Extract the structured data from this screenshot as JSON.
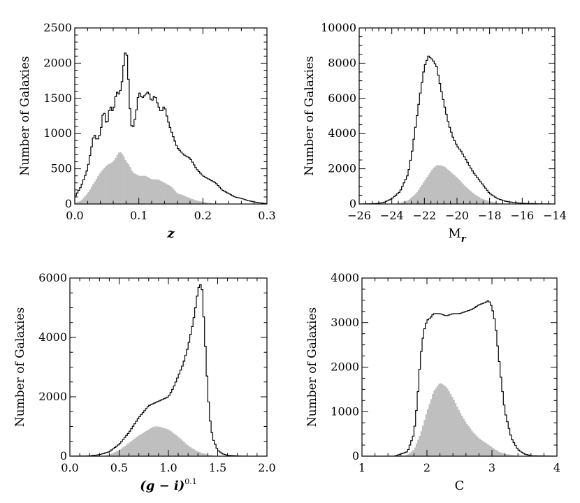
{
  "chart_data": [
    {
      "type": "histogram",
      "xlabel": "z",
      "ylabel": "Number of Galaxies",
      "xlim": [
        0.0,
        0.3
      ],
      "ylim": [
        0,
        2500
      ],
      "xticks": [
        "0.0",
        "0.1",
        "0.2",
        "0.3"
      ],
      "yticks": [
        "0",
        "500",
        "1000",
        "1500",
        "2000",
        "2500"
      ],
      "colors": {
        "outline": "#000000",
        "filled": "#bfbfbf"
      },
      "series": [
        {
          "style": "outline",
          "x": [
            0.0,
            0.01,
            0.02,
            0.025,
            0.03,
            0.035,
            0.04,
            0.045,
            0.05,
            0.055,
            0.06,
            0.065,
            0.07,
            0.075,
            0.078,
            0.08,
            0.082,
            0.085,
            0.088,
            0.09,
            0.095,
            0.1,
            0.105,
            0.11,
            0.115,
            0.12,
            0.125,
            0.13,
            0.135,
            0.14,
            0.145,
            0.15,
            0.16,
            0.17,
            0.18,
            0.19,
            0.2,
            0.21,
            0.22,
            0.23,
            0.24,
            0.25,
            0.26,
            0.27,
            0.28,
            0.29,
            0.3
          ],
          "y": [
            100,
            250,
            500,
            750,
            1000,
            900,
            1000,
            1350,
            1100,
            1400,
            1300,
            1600,
            1550,
            1800,
            2200,
            2050,
            2150,
            1500,
            1150,
            1050,
            1250,
            1600,
            1500,
            1550,
            1600,
            1450,
            1550,
            1400,
            1300,
            1400,
            1200,
            1050,
            800,
            700,
            650,
            500,
            400,
            350,
            300,
            200,
            150,
            100,
            80,
            50,
            30,
            15,
            5
          ]
        },
        {
          "style": "filled",
          "x": [
            0.0,
            0.01,
            0.02,
            0.03,
            0.04,
            0.05,
            0.06,
            0.07,
            0.075,
            0.08,
            0.085,
            0.09,
            0.1,
            0.11,
            0.12,
            0.13,
            0.14,
            0.15,
            0.16,
            0.17,
            0.18,
            0.19,
            0.2,
            0.21,
            0.22,
            0.25,
            0.3
          ],
          "y": [
            10,
            50,
            150,
            300,
            450,
            550,
            600,
            750,
            700,
            600,
            550,
            450,
            400,
            400,
            350,
            350,
            300,
            250,
            150,
            120,
            80,
            50,
            30,
            15,
            5,
            0,
            0
          ]
        }
      ]
    },
    {
      "type": "histogram",
      "xlabel": "M_r",
      "ylabel": "Number of Galaxies",
      "xlim": [
        -26,
        -14
      ],
      "ylim": [
        0,
        10000
      ],
      "xticks": [
        "−26",
        "−24",
        "−22",
        "−20",
        "−18",
        "−16",
        "−14"
      ],
      "yticks": [
        "0",
        "2000",
        "4000",
        "6000",
        "8000",
        "10000"
      ],
      "colors": {
        "outline": "#000000",
        "filled": "#bfbfbf"
      },
      "series": [
        {
          "style": "outline",
          "x": [
            -26,
            -25,
            -24.5,
            -24,
            -23.5,
            -23,
            -22.75,
            -22.5,
            -22.25,
            -22,
            -21.75,
            -21.5,
            -21.25,
            -21,
            -20.75,
            -20.5,
            -20.25,
            -20,
            -19.75,
            -19.5,
            -19.25,
            -19,
            -18.75,
            -18.5,
            -18.25,
            -18,
            -17.5,
            -17,
            -16.5,
            -16,
            -15,
            -14
          ],
          "y": [
            0,
            20,
            80,
            300,
            700,
            1700,
            3000,
            4700,
            6300,
            7800,
            8400,
            8200,
            7800,
            6600,
            5500,
            4500,
            3800,
            3300,
            3000,
            2600,
            2200,
            1800,
            1500,
            1200,
            900,
            600,
            300,
            150,
            80,
            40,
            10,
            0
          ]
        },
        {
          "style": "filled",
          "x": [
            -26,
            -24,
            -23.5,
            -23,
            -22.5,
            -22,
            -21.5,
            -21.25,
            -21,
            -20.75,
            -20.5,
            -20,
            -19.5,
            -19,
            -18.5,
            -18,
            -17.5,
            -17,
            -16,
            -14
          ],
          "y": [
            0,
            0,
            60,
            200,
            600,
            1300,
            2000,
            2200,
            2200,
            2100,
            1900,
            1500,
            1000,
            600,
            300,
            150,
            60,
            20,
            0,
            0
          ]
        }
      ]
    },
    {
      "type": "histogram",
      "xlabel": "(g − i)^0.1",
      "ylabel": "Number of Galaxies",
      "xlim": [
        0.0,
        2.0
      ],
      "ylim": [
        0,
        6000
      ],
      "xticks": [
        "0.0",
        "0.5",
        "1.0",
        "1.5",
        "2.0"
      ],
      "yticks": [
        "0",
        "2000",
        "4000",
        "6000"
      ],
      "colors": {
        "outline": "#000000",
        "filled": "#bfbfbf"
      },
      "series": [
        {
          "style": "outline",
          "x": [
            0.0,
            0.2,
            0.3,
            0.4,
            0.5,
            0.6,
            0.7,
            0.8,
            0.9,
            1.0,
            1.05,
            1.1,
            1.15,
            1.2,
            1.25,
            1.28,
            1.3,
            1.32,
            1.34,
            1.36,
            1.38,
            1.4,
            1.42,
            1.45,
            1.5,
            1.55,
            1.6,
            1.7,
            1.8,
            2.0
          ],
          "y": [
            0,
            10,
            50,
            150,
            400,
            800,
            1300,
            1700,
            1850,
            2000,
            2300,
            2700,
            3100,
            3700,
            4500,
            5100,
            5600,
            5800,
            5700,
            4600,
            3400,
            2200,
            1300,
            600,
            200,
            80,
            30,
            10,
            0,
            0
          ]
        },
        {
          "style": "filled",
          "x": [
            0.0,
            0.3,
            0.4,
            0.5,
            0.6,
            0.7,
            0.8,
            0.85,
            0.9,
            0.95,
            1.0,
            1.1,
            1.2,
            1.3,
            1.4,
            1.5,
            2.0
          ],
          "y": [
            0,
            0,
            50,
            200,
            450,
            700,
            900,
            1000,
            1000,
            950,
            900,
            650,
            350,
            150,
            50,
            10,
            0
          ]
        }
      ]
    },
    {
      "type": "histogram",
      "xlabel": "C",
      "ylabel": "Number of Galaxies",
      "xlim": [
        1,
        4
      ],
      "ylim": [
        0,
        4000
      ],
      "xticks": [
        "1",
        "2",
        "3",
        "4"
      ],
      "yticks": [
        "0",
        "1000",
        "2000",
        "3000",
        "4000"
      ],
      "colors": {
        "outline": "#000000",
        "filled": "#bfbfbf"
      },
      "series": [
        {
          "style": "outline",
          "x": [
            1.0,
            1.5,
            1.7,
            1.8,
            1.85,
            1.9,
            1.95,
            2.0,
            2.05,
            2.1,
            2.2,
            2.3,
            2.4,
            2.5,
            2.6,
            2.7,
            2.8,
            2.9,
            2.95,
            3.0,
            3.05,
            3.1,
            3.15,
            3.2,
            3.3,
            3.4,
            3.5,
            3.6,
            4.0
          ],
          "y": [
            0,
            0,
            100,
            500,
            1200,
            2200,
            2800,
            3050,
            3100,
            3200,
            3200,
            3150,
            3200,
            3200,
            3250,
            3300,
            3400,
            3450,
            3500,
            3350,
            3000,
            2300,
            1600,
            1000,
            400,
            150,
            50,
            10,
            0
          ]
        },
        {
          "style": "filled",
          "x": [
            1.0,
            1.6,
            1.7,
            1.8,
            1.9,
            2.0,
            2.1,
            2.2,
            2.3,
            2.4,
            2.5,
            2.6,
            2.7,
            2.8,
            2.9,
            3.0,
            3.1,
            3.2,
            3.4,
            4.0
          ],
          "y": [
            0,
            0,
            30,
            150,
            500,
            1000,
            1450,
            1650,
            1550,
            1300,
            1000,
            750,
            550,
            400,
            300,
            200,
            100,
            50,
            10,
            0
          ]
        }
      ]
    }
  ]
}
